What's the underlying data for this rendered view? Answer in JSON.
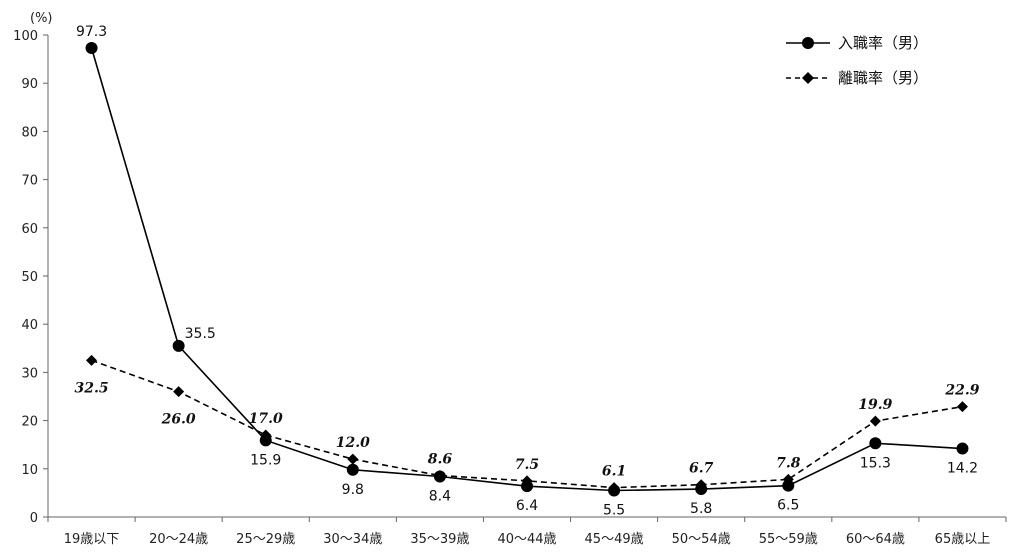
{
  "chart_data": {
    "type": "line",
    "title": "",
    "xlabel": "",
    "ylabel": "(%)",
    "ylim": [
      0,
      100
    ],
    "y_ticks": [
      "0",
      "10",
      "20",
      "30",
      "40",
      "50",
      "60",
      "70",
      "80",
      "90",
      "100"
    ],
    "grid": false,
    "legend_position": "top-right",
    "categories": [
      "19歳以下",
      "20～24歳",
      "25～29歳",
      "30～34歳",
      "35～39歳",
      "40～44歳",
      "45～49歳",
      "50～54歳",
      "55～59歳",
      "60～64歳",
      "65歳以上"
    ],
    "series": [
      {
        "name": "入職率（男）",
        "marker": "circle",
        "line_style": "solid",
        "color": "#000000",
        "values": [
          97.3,
          35.5,
          15.9,
          9.8,
          8.4,
          6.4,
          5.5,
          5.8,
          6.5,
          15.3,
          14.2
        ],
        "labels": [
          "97.3",
          "35.5",
          "15.9",
          "9.8",
          "8.4",
          "6.4",
          "5.5",
          "5.8",
          "6.5",
          "15.3",
          "14.2"
        ]
      },
      {
        "name": "離職率（男）",
        "marker": "diamond",
        "line_style": "dashed",
        "color": "#000000",
        "values": [
          32.5,
          26.0,
          17.0,
          12.0,
          8.6,
          7.5,
          6.1,
          6.7,
          7.8,
          19.9,
          22.9
        ],
        "labels": [
          "32.5",
          "26.0",
          "17.0",
          "12.0",
          "8.6",
          "7.5",
          "6.1",
          "6.7",
          "7.8",
          "19.9",
          "22.9"
        ]
      }
    ]
  }
}
